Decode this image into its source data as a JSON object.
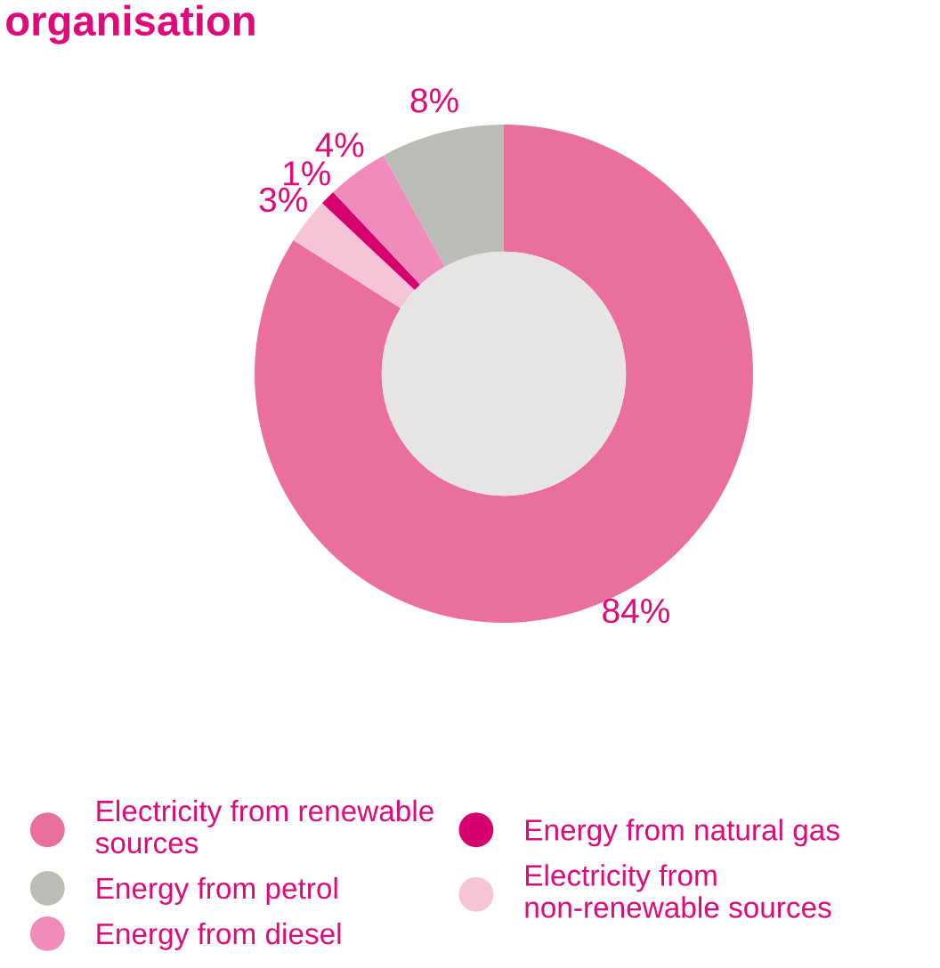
{
  "chart_data": {
    "type": "donut",
    "title": "organisation",
    "categories": [
      "Electricity from renewable\nsources",
      "Electricity from\nnon-renewable sources",
      "Energy from natural gas",
      "Energy from diesel",
      "Energy from petrol"
    ],
    "values": [
      84,
      3,
      1,
      4,
      8
    ],
    "colors": [
      "#ea6f9c",
      "#f6c3d7",
      "#d6006f",
      "#f08cbb",
      "#bcbcb7"
    ],
    "value_labels": [
      "84%",
      "3%",
      "1%",
      "4%",
      "8%"
    ],
    "legend": "bottom"
  }
}
